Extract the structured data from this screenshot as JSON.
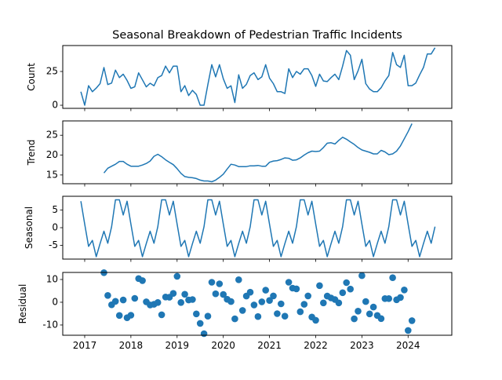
{
  "chart_data": {
    "type": "line",
    "title": "Seasonal Breakdown of Pedestrian Traffic Incidents",
    "x_start": "2016-12",
    "x_frequency": "monthly",
    "x_tick_labels": [
      "2017",
      "2018",
      "2019",
      "2020",
      "2021",
      "2022",
      "2023",
      "2024"
    ],
    "xlim": [
      2016.525,
      2024.946
    ],
    "panels": [
      {
        "name": "count",
        "ylabel": "Count",
        "kind": "line",
        "ylim": [
          -2.3,
          44.2
        ],
        "yticks": [
          0,
          25
        ],
        "start_index": 0,
        "values": [
          10,
          0,
          14.5,
          10,
          12.7,
          16,
          27.9,
          15.3,
          16.4,
          26,
          20.5,
          23,
          18.4,
          12.5,
          13.6,
          24,
          18.8,
          13.6,
          16.3,
          14.4,
          20.4,
          22,
          29,
          24,
          29,
          29,
          10,
          14.5,
          7.2,
          11,
          8,
          0,
          0,
          15.3,
          30,
          21,
          30,
          19.6,
          12.5,
          14.4,
          2,
          22.5,
          12.5,
          15.4,
          22,
          24,
          19,
          21,
          30,
          20,
          16,
          10,
          10,
          8.7,
          27,
          20.5,
          25,
          23,
          27,
          27,
          22,
          14,
          23,
          18,
          17.5,
          20.5,
          23,
          19,
          29,
          40.5,
          37,
          19,
          25.5,
          34,
          16,
          12,
          10,
          10,
          13,
          18,
          22,
          39,
          30,
          28,
          37,
          14.5,
          14.5,
          16.5,
          22.5,
          28,
          38,
          38,
          42.6
        ]
      },
      {
        "name": "trend",
        "ylabel": "Trend",
        "kind": "line",
        "ylim": [
          12.8,
          28.6
        ],
        "yticks": [
          15,
          20,
          25
        ],
        "start_index": 6,
        "values": [
          15.5,
          16.7,
          17.2,
          17.7,
          18.4,
          18.4,
          17.7,
          17.2,
          17.2,
          17.2,
          17.5,
          17.9,
          18.5,
          19.7,
          20.2,
          19.6,
          18.8,
          18.2,
          17.6,
          16.6,
          15.4,
          14.6,
          14.4,
          14.3,
          14.1,
          13.7,
          13.5,
          13.5,
          13.3,
          13.7,
          14.4,
          15.2,
          16.5,
          17.7,
          17.5,
          17.1,
          17.1,
          17.1,
          17.3,
          17.3,
          17.4,
          17.2,
          17.2,
          18.2,
          18.5,
          18.6,
          18.9,
          19.3,
          19.2,
          18.7,
          18.8,
          19.3,
          20.0,
          20.6,
          21.0,
          20.9,
          21.0,
          21.9,
          23.0,
          23.1,
          22.8,
          23.7,
          24.5,
          24.0,
          23.3,
          22.7,
          21.9,
          21.3,
          21.0,
          20.7,
          20.3,
          20.3,
          21.2,
          20.8,
          20.1,
          20.3,
          21.0,
          22.3,
          24.1,
          25.9,
          27.9
        ]
      },
      {
        "name": "seasonal",
        "ylabel": "Seasonal",
        "kind": "line",
        "ylim": [
          -8.9,
          8.9
        ],
        "yticks": [
          -5,
          0,
          5
        ],
        "start_index": 0,
        "pattern_starting_december": [
          7.5,
          1.0,
          -5.3,
          -3.6,
          -8.2,
          -4.5,
          -1.0,
          -4.4,
          0.3,
          7.9,
          7.9,
          3.6
        ],
        "length": 93
      },
      {
        "name": "residual",
        "ylabel": "Residual",
        "kind": "scatter",
        "ylim": [
          -14.5,
          13.1
        ],
        "yticks": [
          -10,
          0,
          10
        ],
        "start_index": 6,
        "values": [
          13.0,
          3.0,
          -1.1,
          0.4,
          -5.8,
          1.0,
          -6.8,
          -5.7,
          1.7,
          10.4,
          9.5,
          0.2,
          -1.2,
          -0.9,
          -0.1,
          -5.5,
          2.3,
          2.2,
          3.9,
          11.4,
          -0.1,
          3.5,
          1.0,
          1.2,
          -5.1,
          -9.3,
          -13.8,
          -6.1,
          8.8,
          3.7,
          8.1,
          3.4,
          1.3,
          0.3,
          -7.3,
          9.9,
          -3.6,
          2.7,
          4.4,
          -1.2,
          -6.3,
          0.2,
          5.3,
          0.8,
          2.8,
          -5.0,
          -0.7,
          -6.1,
          8.8,
          6.2,
          5.9,
          -4.2,
          -0.9,
          2.8,
          -6.5,
          -7.9,
          7.3,
          -0.3,
          2.7,
          1.9,
          1.2,
          -0.3,
          4.2,
          8.6,
          5.8,
          -7.3,
          -3.9,
          11.7,
          0.3,
          -5.1,
          -2.1,
          -5.8,
          -7.2,
          1.6,
          1.6,
          10.8,
          1.1,
          2.1,
          5.4,
          -12.4,
          -8.1
        ]
      }
    ],
    "colors": {
      "series": "#1f77b4"
    }
  }
}
